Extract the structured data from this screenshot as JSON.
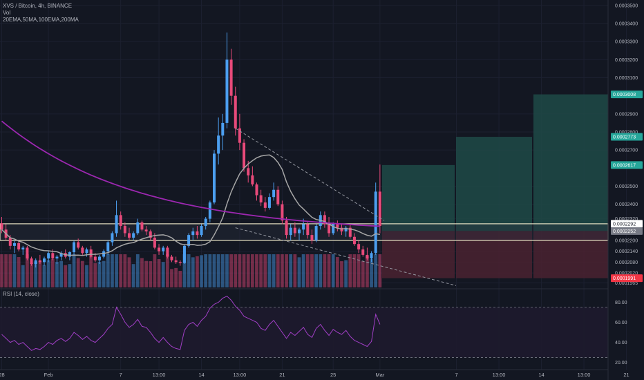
{
  "header": {
    "title": "XVS / Bitcoin, 4h, BINANCE",
    "vol_label": "Vol",
    "ema_label": "20EMA,50MA,100EMA,200MA"
  },
  "rsi": {
    "label": "RSI (14, close)",
    "ticks": [
      {
        "value": 80,
        "label": "80.00"
      },
      {
        "value": 60,
        "label": "60.00"
      },
      {
        "value": 40,
        "label": "40.00"
      },
      {
        "value": 20,
        "label": "20.00"
      }
    ]
  },
  "colors": {
    "background": "#131722",
    "up": "#4c9ff0",
    "down": "#e84a7a",
    "ma_purple": "#9c27b0",
    "ma_gray": "#a6a6a6",
    "profit_zone": "#1f4a47",
    "loss_zone": "#4a2230",
    "rsi_line": "#a13fc6",
    "zone_line": "#e8e2c4"
  },
  "chart_data": {
    "type": "candlestick",
    "y_axis": {
      "range": [
        0.000194,
        0.000353
      ],
      "ticks": [
        {
          "value": 0.00035,
          "label": "0.0003500"
        },
        {
          "value": 0.00034,
          "label": "0.0003400"
        },
        {
          "value": 0.00033,
          "label": "0.0003300"
        },
        {
          "value": 0.00032,
          "label": "0.0003200"
        },
        {
          "value": 0.00031,
          "label": "0.0003100"
        },
        {
          "value": 0.00029,
          "label": "0.0002900"
        },
        {
          "value": 0.00028,
          "label": "0.0002800"
        },
        {
          "value": 0.00027,
          "label": "0.0002700"
        },
        {
          "value": 0.00025,
          "label": "0.0002500"
        },
        {
          "value": 0.00024,
          "label": "0.0002400"
        },
        {
          "value": 0.000232,
          "label": "0.0002320"
        },
        {
          "value": 0.00022,
          "label": "0.0002200"
        },
        {
          "value": 0.000214,
          "label": "0.0002140"
        },
        {
          "value": 0.000208,
          "label": "0.0002080"
        },
        {
          "value": 0.000202,
          "label": "0.0002020"
        },
        {
          "value": 0.0001965,
          "label": "0.0001965"
        }
      ]
    },
    "x_axis": {
      "ticks": [
        {
          "label": "28",
          "index": 0
        },
        {
          "label": "Feb",
          "index": 11
        },
        {
          "label": "7",
          "index": 28
        },
        {
          "label": "13:00",
          "index": 37
        },
        {
          "label": "14",
          "index": 47
        },
        {
          "label": "13:00",
          "index": 56
        },
        {
          "label": "21",
          "index": 66
        },
        {
          "label": "25",
          "index": 78
        },
        {
          "label": "Mar",
          "index": 89
        },
        {
          "label": "7",
          "index": 107
        },
        {
          "label": "13:00",
          "index": 117
        },
        {
          "label": "14",
          "index": 127
        },
        {
          "label": "13:00",
          "index": 137
        },
        {
          "label": "21",
          "index": 147
        }
      ]
    },
    "price_tags": [
      {
        "value": 0.0003008,
        "label": "0.0003008",
        "color": "#26a69a"
      },
      {
        "value": 0.0002773,
        "label": "0.0002773",
        "color": "#26a69a"
      },
      {
        "value": 0.0002617,
        "label": "0.0002617",
        "color": "#26a69a"
      },
      {
        "value": 0.0002292,
        "label": "0.0002292",
        "color": "#ffffff"
      },
      {
        "value": 0.0002252,
        "label": "0.0002252",
        "color": "#787b86"
      },
      {
        "value": 0.0001991,
        "label": "0.0001991",
        "color": "#f23645"
      }
    ],
    "zone_levels": {
      "top": 0.0002292,
      "bottom": 0.00022
    },
    "entry_level": 0.0002252,
    "stop_level": 0.0001991,
    "targets": [
      0.0002617,
      0.0002773,
      0.0003008
    ],
    "candles": [
      {
        "o": 0.0002295,
        "h": 0.000233,
        "l": 0.000224,
        "c": 0.000226
      },
      {
        "o": 0.000226,
        "h": 0.000229,
        "l": 0.00022,
        "c": 0.0002215
      },
      {
        "o": 0.0002215,
        "h": 0.000223,
        "l": 0.000215,
        "c": 0.000217
      },
      {
        "o": 0.000217,
        "h": 0.00022,
        "l": 0.000213,
        "c": 0.0002185
      },
      {
        "o": 0.0002185,
        "h": 0.00022,
        "l": 0.000214,
        "c": 0.000215
      },
      {
        "o": 0.000215,
        "h": 0.000217,
        "l": 0.000212,
        "c": 0.000216
      },
      {
        "o": 0.000216,
        "h": 0.000217,
        "l": 0.000209,
        "c": 0.00021
      },
      {
        "o": 0.00021,
        "h": 0.000211,
        "l": 0.000206,
        "c": 0.000207
      },
      {
        "o": 0.000207,
        "h": 0.00021,
        "l": 0.000205,
        "c": 0.000209
      },
      {
        "o": 0.000209,
        "h": 0.000212,
        "l": 0.000207,
        "c": 0.000208
      },
      {
        "o": 0.000208,
        "h": 0.000211,
        "l": 0.000206,
        "c": 0.00021
      },
      {
        "o": 0.00021,
        "h": 0.000214,
        "l": 0.000208,
        "c": 0.000213
      },
      {
        "o": 0.000213,
        "h": 0.000215,
        "l": 0.000209,
        "c": 0.00021
      },
      {
        "o": 0.00021,
        "h": 0.000212,
        "l": 0.000207,
        "c": 0.000211
      },
      {
        "o": 0.000211,
        "h": 0.000214,
        "l": 0.000209,
        "c": 0.000213
      },
      {
        "o": 0.000213,
        "h": 0.000215,
        "l": 0.00021,
        "c": 0.000211
      },
      {
        "o": 0.000211,
        "h": 0.000214,
        "l": 0.000209,
        "c": 0.0002135
      },
      {
        "o": 0.0002135,
        "h": 0.00022,
        "l": 0.000212,
        "c": 0.000219
      },
      {
        "o": 0.000219,
        "h": 0.000221,
        "l": 0.000215,
        "c": 0.000216
      },
      {
        "o": 0.000216,
        "h": 0.000217,
        "l": 0.000212,
        "c": 0.000213
      },
      {
        "o": 0.000213,
        "h": 0.000216,
        "l": 0.000211,
        "c": 0.000215
      },
      {
        "o": 0.000215,
        "h": 0.000217,
        "l": 0.00021,
        "c": 0.000211
      },
      {
        "o": 0.000211,
        "h": 0.000213,
        "l": 0.000208,
        "c": 0.000209
      },
      {
        "o": 0.000209,
        "h": 0.000212,
        "l": 0.000207,
        "c": 0.000211
      },
      {
        "o": 0.000211,
        "h": 0.000215,
        "l": 0.00021,
        "c": 0.000214
      },
      {
        "o": 0.000214,
        "h": 0.00022,
        "l": 0.000212,
        "c": 0.000219
      },
      {
        "o": 0.000219,
        "h": 0.000225,
        "l": 0.000217,
        "c": 0.000224
      },
      {
        "o": 0.000224,
        "h": 0.000242,
        "l": 0.000222,
        "c": 0.000234
      },
      {
        "o": 0.000234,
        "h": 0.000236,
        "l": 0.000226,
        "c": 0.000228
      },
      {
        "o": 0.000228,
        "h": 0.00023,
        "l": 0.000222,
        "c": 0.000224
      },
      {
        "o": 0.000224,
        "h": 0.000227,
        "l": 0.00022,
        "c": 0.0002215
      },
      {
        "o": 0.0002215,
        "h": 0.000225,
        "l": 0.00022,
        "c": 0.000224
      },
      {
        "o": 0.000224,
        "h": 0.000232,
        "l": 0.000223,
        "c": 0.00023
      },
      {
        "o": 0.00023,
        "h": 0.000231,
        "l": 0.000225,
        "c": 0.000226
      },
      {
        "o": 0.000226,
        "h": 0.000228,
        "l": 0.000223,
        "c": 0.000225
      },
      {
        "o": 0.000225,
        "h": 0.000226,
        "l": 0.00022,
        "c": 0.0002215
      },
      {
        "o": 0.0002215,
        "h": 0.000224,
        "l": 0.000215,
        "c": 0.000216
      },
      {
        "o": 0.000216,
        "h": 0.000218,
        "l": 0.000212,
        "c": 0.000214
      },
      {
        "o": 0.000214,
        "h": 0.000217,
        "l": 0.000212,
        "c": 0.000216
      },
      {
        "o": 0.000216,
        "h": 0.000217,
        "l": 0.00021,
        "c": 0.000211
      },
      {
        "o": 0.000211,
        "h": 0.000212,
        "l": 0.000208,
        "c": 0.000209
      },
      {
        "o": 0.000209,
        "h": 0.000211,
        "l": 0.000207,
        "c": 0.000208
      },
      {
        "o": 0.000208,
        "h": 0.000209,
        "l": 0.000206,
        "c": 0.0002075
      },
      {
        "o": 0.0002075,
        "h": 0.000218,
        "l": 0.000207,
        "c": 0.000217
      },
      {
        "o": 0.000217,
        "h": 0.000224,
        "l": 0.000216,
        "c": 0.000223
      },
      {
        "o": 0.000223,
        "h": 0.000227,
        "l": 0.00022,
        "c": 0.000225
      },
      {
        "o": 0.000225,
        "h": 0.000228,
        "l": 0.000221,
        "c": 0.000223
      },
      {
        "o": 0.000223,
        "h": 0.000229,
        "l": 0.000222,
        "c": 0.000228
      },
      {
        "o": 0.000228,
        "h": 0.000233,
        "l": 0.000226,
        "c": 0.000232
      },
      {
        "o": 0.000232,
        "h": 0.000242,
        "l": 0.00023,
        "c": 0.000241
      },
      {
        "o": 0.000241,
        "h": 0.00027,
        "l": 0.00024,
        "c": 0.000268
      },
      {
        "o": 0.000268,
        "h": 0.000288,
        "l": 0.000262,
        "c": 0.000278
      },
      {
        "o": 0.000278,
        "h": 0.00029,
        "l": 0.00027,
        "c": 0.000285
      },
      {
        "o": 0.000285,
        "h": 0.000335,
        "l": 0.000282,
        "c": 0.00032
      },
      {
        "o": 0.00032,
        "h": 0.000326,
        "l": 0.000295,
        "c": 0.0003
      },
      {
        "o": 0.0003,
        "h": 0.000305,
        "l": 0.000278,
        "c": 0.000282
      },
      {
        "o": 0.000282,
        "h": 0.00029,
        "l": 0.00027,
        "c": 0.000274
      },
      {
        "o": 0.000274,
        "h": 0.000276,
        "l": 0.000258,
        "c": 0.00026
      },
      {
        "o": 0.00026,
        "h": 0.000264,
        "l": 0.000252,
        "c": 0.000256
      },
      {
        "o": 0.000256,
        "h": 0.000261,
        "l": 0.00025,
        "c": 0.000251
      },
      {
        "o": 0.000251,
        "h": 0.000252,
        "l": 0.000242,
        "c": 0.000245
      },
      {
        "o": 0.000245,
        "h": 0.000248,
        "l": 0.000239,
        "c": 0.000241
      },
      {
        "o": 0.000241,
        "h": 0.000244,
        "l": 0.000236,
        "c": 0.000238
      },
      {
        "o": 0.000238,
        "h": 0.000246,
        "l": 0.000237,
        "c": 0.000244
      },
      {
        "o": 0.000244,
        "h": 0.000252,
        "l": 0.000242,
        "c": 0.000248
      },
      {
        "o": 0.000248,
        "h": 0.00025,
        "l": 0.000239,
        "c": 0.00024
      },
      {
        "o": 0.00024,
        "h": 0.000242,
        "l": 0.000229,
        "c": 0.000231
      },
      {
        "o": 0.000231,
        "h": 0.000233,
        "l": 0.000221,
        "c": 0.000223
      },
      {
        "o": 0.000223,
        "h": 0.000229,
        "l": 0.00022,
        "c": 0.000227
      },
      {
        "o": 0.000227,
        "h": 0.00023,
        "l": 0.000222,
        "c": 0.000224
      },
      {
        "o": 0.000224,
        "h": 0.000227,
        "l": 0.00022,
        "c": 0.000226
      },
      {
        "o": 0.000226,
        "h": 0.000232,
        "l": 0.000223,
        "c": 0.000229
      },
      {
        "o": 0.000229,
        "h": 0.00023,
        "l": 0.000221,
        "c": 0.000223
      },
      {
        "o": 0.000223,
        "h": 0.000226,
        "l": 0.000218,
        "c": 0.00022
      },
      {
        "o": 0.00022,
        "h": 0.000229,
        "l": 0.000219,
        "c": 0.000228
      },
      {
        "o": 0.000228,
        "h": 0.000236,
        "l": 0.000226,
        "c": 0.000234
      },
      {
        "o": 0.000234,
        "h": 0.000236,
        "l": 0.000227,
        "c": 0.000229
      },
      {
        "o": 0.000229,
        "h": 0.000233,
        "l": 0.000222,
        "c": 0.000224
      },
      {
        "o": 0.000224,
        "h": 0.00023,
        "l": 0.000223,
        "c": 0.000229
      },
      {
        "o": 0.000229,
        "h": 0.000231,
        "l": 0.000225,
        "c": 0.000227
      },
      {
        "o": 0.000227,
        "h": 0.000229,
        "l": 0.000223,
        "c": 0.000225
      },
      {
        "o": 0.000225,
        "h": 0.000228,
        "l": 0.000222,
        "c": 0.000227
      },
      {
        "o": 0.000227,
        "h": 0.000229,
        "l": 0.000221,
        "c": 0.000222
      },
      {
        "o": 0.000222,
        "h": 0.000224,
        "l": 0.000217,
        "c": 0.000218
      },
      {
        "o": 0.000218,
        "h": 0.00022,
        "l": 0.000213,
        "c": 0.000215
      },
      {
        "o": 0.000215,
        "h": 0.000217,
        "l": 0.000211,
        "c": 0.000212
      },
      {
        "o": 0.000212,
        "h": 0.000216,
        "l": 0.000209,
        "c": 0.00021
      },
      {
        "o": 0.00021,
        "h": 0.000214,
        "l": 0.000208,
        "c": 0.000213
      },
      {
        "o": 0.000213,
        "h": 0.000252,
        "l": 0.000212,
        "c": 0.000247
      },
      {
        "o": 0.000247,
        "h": 0.000262,
        "l": 0.000224,
        "c": 0.000228
      }
    ],
    "rsi_values": [
      48,
      44,
      40,
      42,
      38,
      40,
      36,
      32,
      34,
      33,
      36,
      40,
      38,
      42,
      44,
      41,
      44,
      50,
      47,
      43,
      46,
      42,
      40,
      44,
      48,
      54,
      58,
      75,
      68,
      60,
      55,
      58,
      63,
      56,
      55,
      50,
      44,
      40,
      45,
      40,
      36,
      34,
      33,
      52,
      58,
      60,
      56,
      62,
      66,
      74,
      78,
      80,
      84,
      86,
      82,
      76,
      72,
      66,
      64,
      62,
      60,
      54,
      52,
      58,
      62,
      56,
      50,
      44,
      50,
      47,
      51,
      55,
      48,
      45,
      54,
      58,
      52,
      47,
      53,
      50,
      48,
      52,
      46,
      42,
      40,
      38,
      36,
      41,
      68,
      58
    ]
  }
}
